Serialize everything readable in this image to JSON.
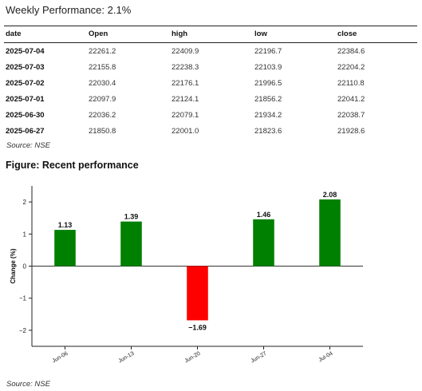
{
  "weekly_performance": "Weekly Performance: 2.1%",
  "table": {
    "headers": [
      "date",
      "Open",
      "high",
      "low",
      "close"
    ],
    "rows": [
      [
        "2025-07-04",
        "22261.2",
        "22409.9",
        "22196.7",
        "22384.6"
      ],
      [
        "2025-07-03",
        "22155.8",
        "22238.3",
        "22103.9",
        "22204.2"
      ],
      [
        "2025-07-02",
        "22030.4",
        "22176.1",
        "21996.5",
        "22110.8"
      ],
      [
        "2025-07-01",
        "22097.9",
        "22124.1",
        "21856.2",
        "22041.2"
      ],
      [
        "2025-06-30",
        "22036.2",
        "22079.1",
        "21934.2",
        "22038.7"
      ],
      [
        "2025-06-27",
        "21850.8",
        "22001.0",
        "21823.6",
        "21928.6"
      ]
    ]
  },
  "table_source": "Source: NSE",
  "figure_title": "Figure: Recent performance",
  "chart_source": "Source: NSE",
  "colors": {
    "positive": "#008000",
    "negative": "#ff0000"
  },
  "chart_data": {
    "type": "bar",
    "categories": [
      "Jun-06",
      "Jun-13",
      "Jun-20",
      "Jun-27",
      "Jul-04"
    ],
    "values": [
      1.13,
      1.39,
      -1.69,
      1.46,
      2.08
    ],
    "value_labels": [
      "1.13",
      "1.39",
      "−1.69",
      "1.46",
      "2.08"
    ],
    "ylabel": "Change (%)",
    "ylim": [
      -2.5,
      2.5
    ],
    "yticks": [
      2,
      1,
      0,
      -1,
      -2
    ],
    "ytick_labels": [
      "2",
      "1",
      "0",
      "−1",
      "−2"
    ],
    "grid": false,
    "zero_line": true
  }
}
